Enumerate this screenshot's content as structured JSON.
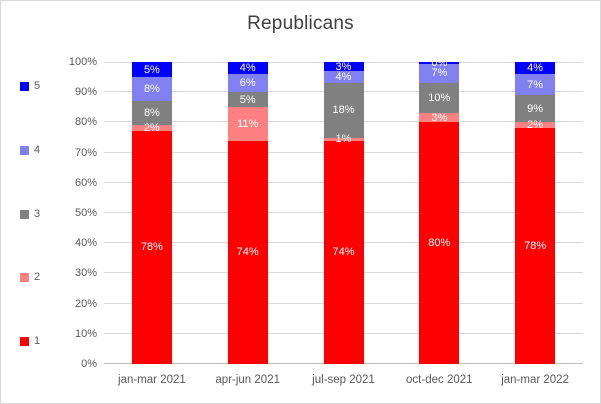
{
  "title": "Republicans",
  "chart_data": {
    "type": "bar",
    "variant": "100-percent-stacked-column",
    "title": "Republicans",
    "categories": [
      "jan-mar 2021",
      "apr-jun 2021",
      "jul-sep 2021",
      "oct-dec 2021",
      "jan-mar 2022"
    ],
    "series": [
      {
        "name": "1",
        "color": "#FF0000",
        "values": [
          78,
          74,
          74,
          80,
          78
        ],
        "labels": [
          "78%",
          "74%",
          "74%",
          "80%",
          "78%"
        ]
      },
      {
        "name": "2",
        "color": "#FF8080",
        "values": [
          2,
          11,
          1,
          3,
          2
        ],
        "labels": [
          "2%",
          "11%",
          "1%",
          "3%",
          "2%"
        ]
      },
      {
        "name": "3",
        "color": "#808080",
        "values": [
          8,
          5,
          18,
          10,
          9
        ],
        "labels": [
          "8%",
          "5%",
          "18%",
          "10%",
          "9%"
        ]
      },
      {
        "name": "4",
        "color": "#8080F0",
        "values": [
          8,
          6,
          4,
          7,
          7
        ],
        "labels": [
          "8%",
          "6%",
          "4%",
          "7%",
          "7%"
        ]
      },
      {
        "name": "5",
        "color": "#0000FF",
        "values": [
          5,
          4,
          3,
          0,
          4
        ],
        "labels": [
          "5%",
          "4%",
          "3%",
          "0%",
          "4%"
        ]
      }
    ],
    "yticks": [
      "0%",
      "10%",
      "20%",
      "30%",
      "40%",
      "50%",
      "60%",
      "70%",
      "80%",
      "90%",
      "100%"
    ],
    "ylim": [
      0,
      100
    ],
    "grid": true,
    "legend_position": "left",
    "legend_top_to_bottom": [
      "5",
      "4",
      "3",
      "2",
      "1"
    ],
    "data_label_color": "#FFFFFF",
    "xlabel": "",
    "ylabel": ""
  },
  "colors": {
    "background": "#FFFFFF",
    "border": "#D9D9D9",
    "gridline": "#D9D9D9",
    "axis_line": "#BFBFBF",
    "title_text": "#404040",
    "axis_text": "#595959"
  }
}
